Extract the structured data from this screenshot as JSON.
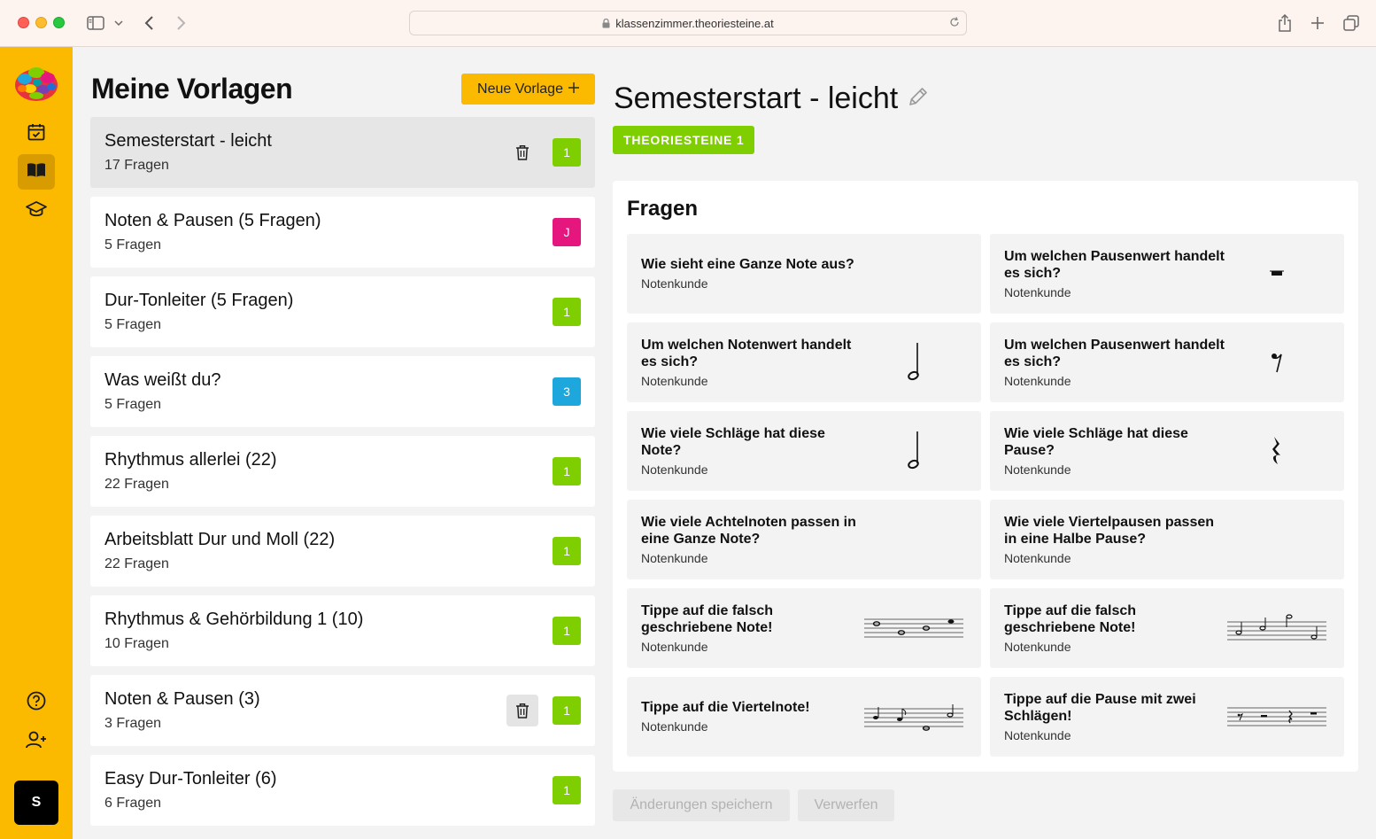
{
  "browser": {
    "url": "klassenzimmer.theoriesteine.at"
  },
  "sidebar": {
    "user_initial": "S",
    "items": [
      {
        "icon": "calendar-icon"
      },
      {
        "icon": "book-icon",
        "active": true
      },
      {
        "icon": "graduation-cap-icon"
      },
      {
        "icon": "help-icon"
      },
      {
        "icon": "add-user-icon"
      }
    ]
  },
  "list": {
    "title": "Meine Vorlagen",
    "new_button": "Neue Vorlage",
    "templates": [
      {
        "name": "Semesterstart - leicht",
        "count": "17 Fragen",
        "badge": "1",
        "badge_color": "#7fce00",
        "trash": true,
        "selected": true
      },
      {
        "name": "Noten & Pausen (5 Fragen)",
        "count": "5 Fragen",
        "badge": "J",
        "badge_color": "#e5177e"
      },
      {
        "name": "Dur-Tonleiter (5 Fragen)",
        "count": "5 Fragen",
        "badge": "1",
        "badge_color": "#7fce00"
      },
      {
        "name": "Was weißt du?",
        "count": "5 Fragen",
        "badge": "3",
        "badge_color": "#1ea7dc"
      },
      {
        "name": "Rhythmus allerlei (22)",
        "count": "22 Fragen",
        "badge": "1",
        "badge_color": "#7fce00"
      },
      {
        "name": "Arbeitsblatt Dur und Moll (22)",
        "count": "22 Fragen",
        "badge": "1",
        "badge_color": "#7fce00"
      },
      {
        "name": "Rhythmus & Gehörbildung 1 (10)",
        "count": "10 Fragen",
        "badge": "1",
        "badge_color": "#7fce00"
      },
      {
        "name": "Noten & Pausen (3)",
        "count": "3 Fragen",
        "badge": "1",
        "badge_color": "#7fce00",
        "trash": true,
        "trash_boxed": true
      },
      {
        "name": "Easy Dur-Tonleiter (6)",
        "count": "6 Fragen",
        "badge": "1",
        "badge_color": "#7fce00"
      }
    ]
  },
  "detail": {
    "title": "Semesterstart - leicht",
    "tag": "THEORIESTEINE 1",
    "section_title": "Fragen",
    "questions": [
      {
        "text": "Wie sieht eine Ganze Note aus?",
        "category": "Notenkunde",
        "image": "none"
      },
      {
        "text": "Um welchen Pausenwert handelt es sich?",
        "category": "Notenkunde",
        "image": "half-rest-icon"
      },
      {
        "text": "Um welchen Notenwert handelt es sich?",
        "category": "Notenkunde",
        "image": "half-note-icon"
      },
      {
        "text": "Um welchen Pausenwert handelt es sich?",
        "category": "Notenkunde",
        "image": "eighth-rest-icon"
      },
      {
        "text": "Wie viele Schläge hat diese Note?",
        "category": "Notenkunde",
        "image": "half-note-icon"
      },
      {
        "text": "Wie viele Schläge hat diese Pause?",
        "category": "Notenkunde",
        "image": "quarter-rest-icon"
      },
      {
        "text": "Wie viele Achtelnoten passen in eine Ganze Note?",
        "category": "Notenkunde",
        "image": "none"
      },
      {
        "text": "Wie viele Viertelpausen passen in eine Halbe Pause?",
        "category": "Notenkunde",
        "image": "none"
      },
      {
        "text": "Tippe auf die falsch geschriebene Note!",
        "category": "Notenkunde",
        "image": "staff-whole-notes-icon"
      },
      {
        "text": "Tippe auf die falsch geschriebene Note!",
        "category": "Notenkunde",
        "image": "staff-half-notes-icon"
      },
      {
        "text": "Tippe auf die Viertelnote!",
        "category": "Notenkunde",
        "image": "staff-mixed-notes-icon"
      },
      {
        "text": "Tippe auf die Pause mit zwei Schlägen!",
        "category": "Notenkunde",
        "image": "staff-rests-icon"
      }
    ],
    "save_button": "Änderungen speichern",
    "discard_button": "Verwerfen"
  }
}
